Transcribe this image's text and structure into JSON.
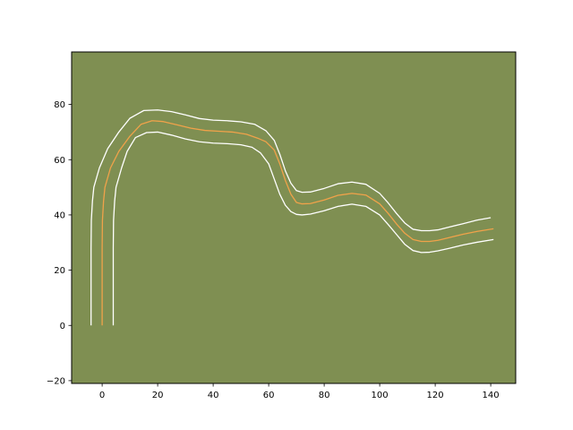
{
  "chart_data": {
    "type": "line",
    "title": "",
    "xlabel": "",
    "ylabel": "",
    "xlim": [
      -11,
      149
    ],
    "ylim": [
      -21,
      99
    ],
    "xticks": [
      0,
      20,
      40,
      60,
      80,
      100,
      120,
      140
    ],
    "yticks": [
      -20,
      0,
      20,
      40,
      60,
      80
    ],
    "grid": false,
    "legend": "none",
    "colors": {
      "axes_background": "#7f8f52",
      "centerline": "#f0a24a",
      "edges": "#ffffff",
      "frame": "#000000"
    },
    "series": [
      {
        "x": [
          -4,
          -4,
          -3.9,
          -3.5,
          -3,
          -1,
          2,
          6,
          10,
          15,
          20,
          25,
          30,
          35,
          40,
          45,
          50,
          55,
          59,
          62,
          64,
          66,
          68,
          70,
          72,
          75,
          80,
          85,
          90,
          95,
          100,
          103,
          106,
          109,
          112,
          115,
          118,
          121,
          125,
          130,
          135,
          140
        ],
        "y": [
          0,
          28,
          38,
          45,
          50,
          57,
          64,
          70,
          75,
          77.8,
          78,
          77.4,
          76.2,
          74.9,
          74.3,
          74.1,
          73.7,
          72.8,
          70.5,
          67,
          62,
          56,
          51.5,
          48.8,
          48.2,
          48.3,
          49.6,
          51.3,
          51.9,
          51.1,
          47.8,
          44.4,
          40.6,
          37.1,
          34.8,
          34.3,
          34.3,
          34.6,
          35.6,
          36.8,
          38.1,
          39
        ]
      },
      {
        "x": [
          0,
          0,
          0.1,
          0.5,
          1,
          3,
          6,
          10,
          14,
          18,
          22,
          27,
          32,
          37,
          42,
          47,
          52,
          56,
          59,
          62,
          64,
          66,
          68,
          70,
          72,
          75,
          80,
          85,
          90,
          95,
          100,
          103,
          106,
          109,
          112,
          115,
          118,
          121,
          125,
          130,
          135,
          141
        ],
        "y": [
          0,
          28,
          38,
          45,
          50,
          57,
          63,
          68.5,
          72.8,
          74.1,
          73.8,
          72.6,
          71.4,
          70.6,
          70.3,
          70,
          69.2,
          67.8,
          66.5,
          63.5,
          58.5,
          52.5,
          47.5,
          44.5,
          44,
          44.1,
          45.4,
          47.1,
          47.8,
          47.2,
          44,
          40.6,
          36.8,
          33.4,
          31.1,
          30.4,
          30.4,
          30.8,
          31.8,
          33,
          34,
          35
        ]
      },
      {
        "x": [
          4,
          4,
          4.1,
          4.5,
          5,
          7,
          9,
          12,
          16,
          20,
          25,
          30,
          35,
          40,
          45,
          50,
          54,
          57,
          60,
          62,
          64,
          66,
          68,
          70,
          72,
          75,
          80,
          85,
          90,
          95,
          100,
          103,
          106,
          109,
          112,
          115,
          118,
          121,
          125,
          130,
          135,
          141
        ],
        "y": [
          0,
          28,
          38,
          45,
          50,
          57,
          63,
          68,
          69.8,
          70,
          68.9,
          67.5,
          66.5,
          66,
          65.8,
          65.4,
          64.5,
          62.5,
          58.5,
          53,
          47.5,
          43.5,
          41.2,
          40.2,
          40,
          40.3,
          41.5,
          43.1,
          43.9,
          43.1,
          40,
          36.6,
          33,
          29.4,
          27.1,
          26.4,
          26.5,
          27,
          27.9,
          29.1,
          30.1,
          31.1
        ]
      }
    ]
  }
}
